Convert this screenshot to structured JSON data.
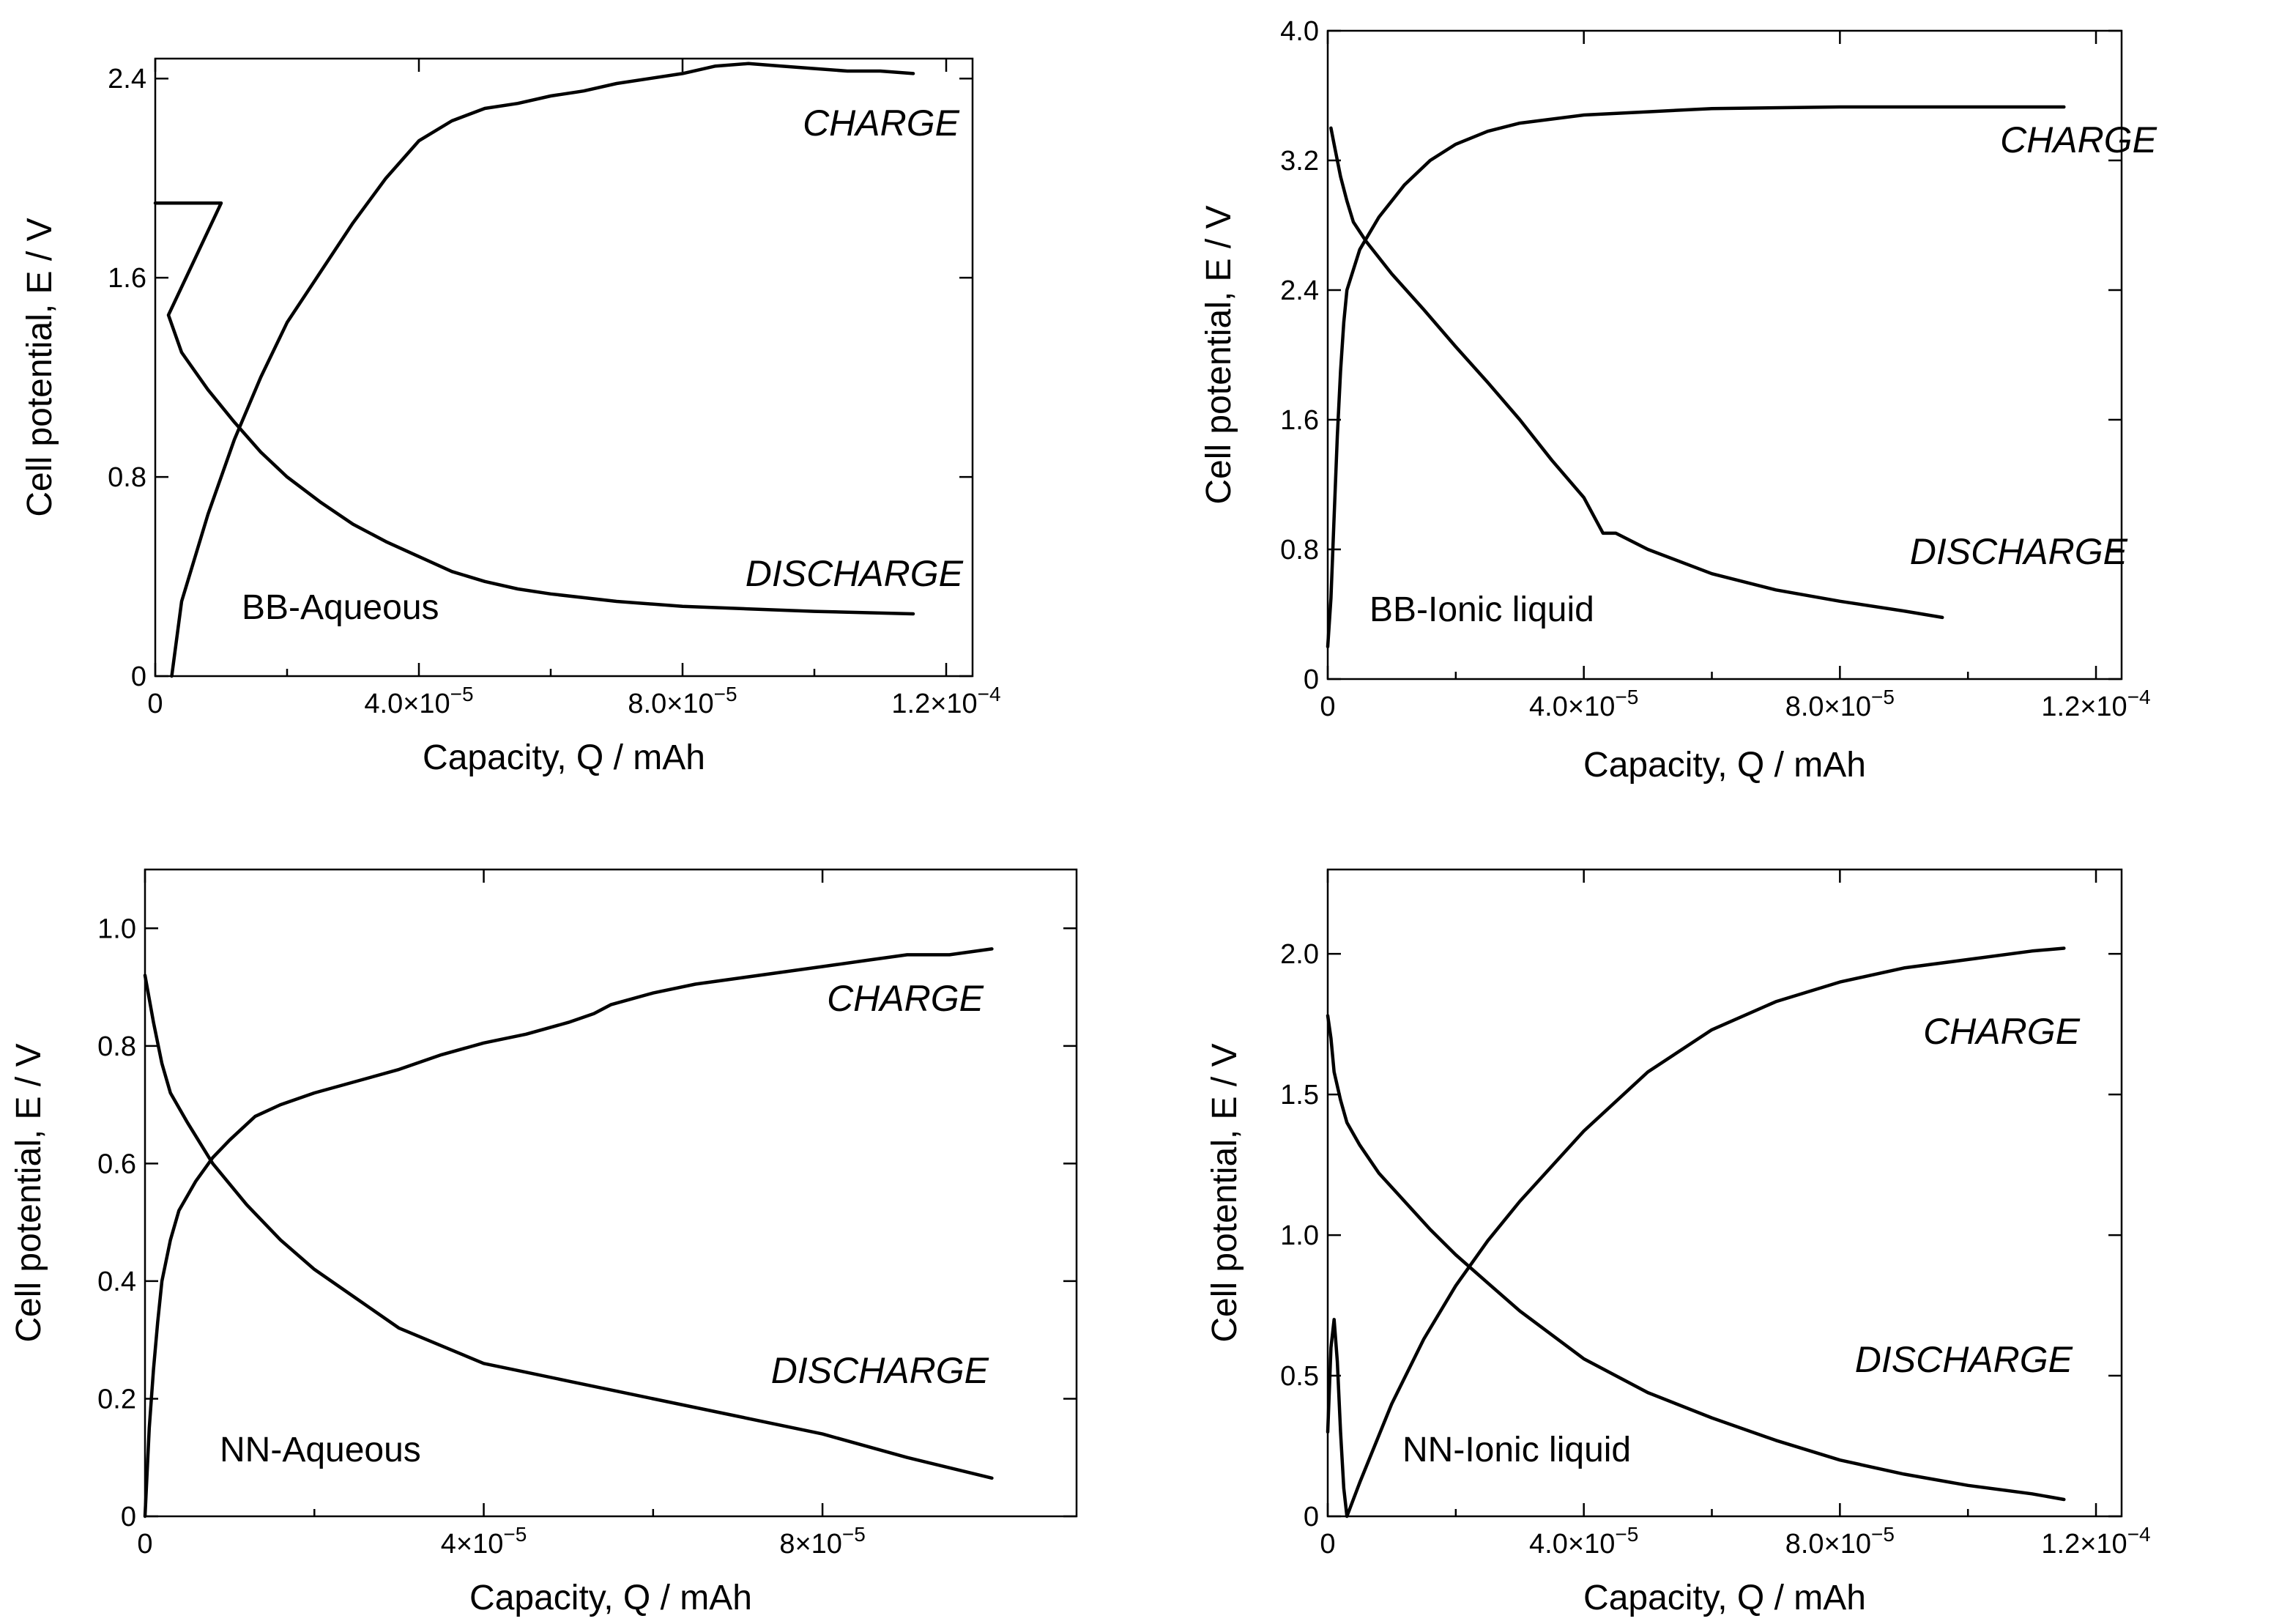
{
  "chart_data": [
    {
      "type": "line",
      "panel_label": "BB-Aqueous",
      "xlabel": "Capacity, Q / mAh",
      "ylabel": "Cell potential, E / V",
      "xlim": [
        0,
        0.000124
      ],
      "ylim": [
        0,
        2.48
      ],
      "x_ticks": [
        {
          "value": 0,
          "label": "0"
        },
        {
          "value": 4e-05,
          "label": "4.0×10",
          "exp": "−5"
        },
        {
          "value": 8e-05,
          "label": "8.0×10",
          "exp": "−5"
        },
        {
          "value": 0.00012,
          "label": "1.2×10",
          "exp": "−4"
        }
      ],
      "y_ticks": [
        {
          "value": 0,
          "label": "0"
        },
        {
          "value": 0.8,
          "label": "0.8"
        },
        {
          "value": 1.6,
          "label": "1.6"
        },
        {
          "value": 2.4,
          "label": "2.4"
        }
      ],
      "series": [
        {
          "name": "CHARGE",
          "x": [
            2.5e-06,
            4e-06,
            8e-06,
            1.2e-05,
            1.6e-05,
            2e-05,
            2.5e-05,
            3e-05,
            3.5e-05,
            4e-05,
            4.5e-05,
            5e-05,
            5.5e-05,
            6e-05,
            6.5e-05,
            7e-05,
            7.5e-05,
            8e-05,
            8.5e-05,
            9e-05,
            9.5e-05,
            0.0001,
            0.000105,
            0.00011,
            0.000115
          ],
          "y": [
            0,
            0.3,
            0.65,
            0.95,
            1.2,
            1.42,
            1.62,
            1.82,
            2.0,
            2.15,
            2.23,
            2.28,
            2.3,
            2.33,
            2.35,
            2.38,
            2.4,
            2.42,
            2.45,
            2.46,
            2.45,
            2.44,
            2.43,
            2.43,
            2.42
          ]
        },
        {
          "name": "DISCHARGE",
          "x": [
            0,
            1e-05,
            2e-06,
            4e-06,
            8e-06,
            1.2e-05,
            1.6e-05,
            2e-05,
            2.5e-05,
            3e-05,
            3.5e-05,
            4e-05,
            4.5e-05,
            5e-05,
            5.5e-05,
            6e-05,
            7e-05,
            8e-05,
            9e-05,
            0.0001,
            0.000115
          ],
          "y": [
            1.9,
            1.9,
            1.45,
            1.3,
            1.15,
            1.02,
            0.9,
            0.8,
            0.7,
            0.61,
            0.54,
            0.48,
            0.42,
            0.38,
            0.35,
            0.33,
            0.3,
            0.28,
            0.27,
            0.26,
            0.25
          ]
        }
      ]
    },
    {
      "type": "line",
      "panel_label": "BB-Ionic liquid",
      "xlabel": "Capacity, Q / mAh",
      "ylabel": "Cell potential, E / V",
      "xlim": [
        0,
        0.000124
      ],
      "ylim": [
        0,
        4.0
      ],
      "x_ticks": [
        {
          "value": 0,
          "label": "0"
        },
        {
          "value": 4e-05,
          "label": "4.0×10",
          "exp": "−5"
        },
        {
          "value": 8e-05,
          "label": "8.0×10",
          "exp": "−5"
        },
        {
          "value": 0.00012,
          "label": "1.2×10",
          "exp": "−4"
        }
      ],
      "y_ticks": [
        {
          "value": 0,
          "label": "0"
        },
        {
          "value": 0.8,
          "label": "0.8"
        },
        {
          "value": 1.6,
          "label": "1.6"
        },
        {
          "value": 2.4,
          "label": "2.4"
        },
        {
          "value": 3.2,
          "label": "3.2"
        },
        {
          "value": 4.0,
          "label": "4.0"
        }
      ],
      "series": [
        {
          "name": "CHARGE",
          "x": [
            0,
            5e-07,
            1e-06,
            1.5e-06,
            2e-06,
            2.5e-06,
            3e-06,
            5e-06,
            8e-06,
            1.2e-05,
            1.6e-05,
            2e-05,
            2.5e-05,
            3e-05,
            4e-05,
            5e-05,
            6e-05,
            8e-05,
            0.0001,
            0.000115
          ],
          "y": [
            0.2,
            0.5,
            1.0,
            1.5,
            1.9,
            2.2,
            2.4,
            2.65,
            2.85,
            3.05,
            3.2,
            3.3,
            3.38,
            3.43,
            3.48,
            3.5,
            3.52,
            3.53,
            3.53,
            3.53
          ]
        },
        {
          "name": "DISCHARGE",
          "x": [
            5e-07,
            1e-06,
            2e-06,
            3e-06,
            4e-06,
            6e-06,
            1e-05,
            1.5e-05,
            2e-05,
            2.5e-05,
            3e-05,
            3.5e-05,
            4e-05,
            4.3e-05,
            4.5e-05,
            5e-05,
            6e-05,
            7e-05,
            8e-05,
            9e-05,
            9.6e-05
          ],
          "y": [
            3.4,
            3.3,
            3.1,
            2.95,
            2.82,
            2.7,
            2.5,
            2.28,
            2.05,
            1.83,
            1.6,
            1.35,
            1.12,
            0.9,
            0.9,
            0.8,
            0.65,
            0.55,
            0.48,
            0.42,
            0.38
          ]
        }
      ]
    },
    {
      "type": "line",
      "panel_label": "NN-Aqueous",
      "xlabel": "Capacity, Q / mAh",
      "ylabel": "Cell potential, E / V",
      "xlim": [
        0,
        0.00011
      ],
      "ylim": [
        0,
        1.1
      ],
      "x_ticks": [
        {
          "value": 0,
          "label": "0"
        },
        {
          "value": 4e-05,
          "label": "4×10",
          "exp": "−5"
        },
        {
          "value": 8e-05,
          "label": "8×10",
          "exp": "−5"
        }
      ],
      "y_ticks": [
        {
          "value": 0,
          "label": "0"
        },
        {
          "value": 0.2,
          "label": "0.2"
        },
        {
          "value": 0.4,
          "label": "0.4"
        },
        {
          "value": 0.6,
          "label": "0.6"
        },
        {
          "value": 0.8,
          "label": "0.8"
        },
        {
          "value": 1.0,
          "label": "1.0"
        }
      ],
      "series": [
        {
          "name": "CHARGE",
          "x": [
            0,
            5e-07,
            1e-06,
            1.5e-06,
            2e-06,
            3e-06,
            4e-06,
            6e-06,
            8e-06,
            1e-05,
            1.3e-05,
            1.6e-05,
            2e-05,
            2.5e-05,
            3e-05,
            3.5e-05,
            4e-05,
            4.5e-05,
            5e-05,
            5.3e-05,
            5.5e-05,
            6e-05,
            6.5e-05,
            7e-05,
            7.5e-05,
            8e-05,
            8.5e-05,
            9e-05,
            9.5e-05,
            0.0001
          ],
          "y": [
            0.0,
            0.15,
            0.25,
            0.33,
            0.4,
            0.47,
            0.52,
            0.57,
            0.61,
            0.64,
            0.68,
            0.7,
            0.72,
            0.74,
            0.76,
            0.785,
            0.805,
            0.82,
            0.84,
            0.855,
            0.87,
            0.89,
            0.905,
            0.915,
            0.925,
            0.935,
            0.945,
            0.955,
            0.955,
            0.965
          ]
        },
        {
          "name": "DISCHARGE",
          "x": [
            0,
            1e-06,
            2e-06,
            3e-06,
            5e-06,
            8e-06,
            1.2e-05,
            1.6e-05,
            2e-05,
            2.5e-05,
            3e-05,
            3.5e-05,
            4e-05,
            4.5e-05,
            5e-05,
            5.5e-05,
            6e-05,
            7e-05,
            8e-05,
            9e-05,
            0.0001
          ],
          "y": [
            0.92,
            0.84,
            0.77,
            0.72,
            0.67,
            0.6,
            0.53,
            0.47,
            0.42,
            0.37,
            0.32,
            0.29,
            0.26,
            0.245,
            0.23,
            0.215,
            0.2,
            0.17,
            0.14,
            0.1,
            0.065
          ]
        }
      ]
    },
    {
      "type": "line",
      "panel_label": "NN-Ionic liquid",
      "xlabel": "Capacity, Q / mAh",
      "ylabel": "Cell potential, E / V",
      "xlim": [
        0,
        0.000124
      ],
      "ylim": [
        0,
        2.3
      ],
      "x_ticks": [
        {
          "value": 0,
          "label": "0"
        },
        {
          "value": 4e-05,
          "label": "4.0×10",
          "exp": "−5"
        },
        {
          "value": 8e-05,
          "label": "8.0×10",
          "exp": "−5"
        },
        {
          "value": 0.00012,
          "label": "1.2×10",
          "exp": "−4"
        }
      ],
      "y_ticks": [
        {
          "value": 0,
          "label": "0"
        },
        {
          "value": 0.5,
          "label": "0.5"
        },
        {
          "value": 1.0,
          "label": "1.0"
        },
        {
          "value": 1.5,
          "label": "1.5"
        },
        {
          "value": 2.0,
          "label": "2.0"
        }
      ],
      "series": [
        {
          "name": "CHARGE",
          "x": [
            0,
            5e-07,
            1e-06,
            1.5e-06,
            2e-06,
            2.5e-06,
            3e-06,
            5e-06,
            1e-05,
            1.5e-05,
            2e-05,
            2.5e-05,
            3e-05,
            4e-05,
            5e-05,
            6e-05,
            7e-05,
            8e-05,
            9e-05,
            0.0001,
            0.00011,
            0.000115
          ],
          "y": [
            0.3,
            0.6,
            0.7,
            0.55,
            0.3,
            0.1,
            0.0,
            0.12,
            0.4,
            0.63,
            0.82,
            0.98,
            1.12,
            1.37,
            1.58,
            1.73,
            1.83,
            1.9,
            1.95,
            1.98,
            2.01,
            2.02
          ]
        },
        {
          "name": "DISCHARGE",
          "x": [
            0,
            5e-07,
            1e-06,
            2e-06,
            3e-06,
            5e-06,
            8e-06,
            1.2e-05,
            1.6e-05,
            2e-05,
            2.5e-05,
            3e-05,
            4e-05,
            5e-05,
            6e-05,
            7e-05,
            8e-05,
            9e-05,
            0.0001,
            0.00011,
            0.000115
          ],
          "y": [
            1.78,
            1.7,
            1.58,
            1.48,
            1.4,
            1.32,
            1.22,
            1.12,
            1.02,
            0.93,
            0.83,
            0.73,
            0.56,
            0.44,
            0.35,
            0.27,
            0.2,
            0.15,
            0.11,
            0.08,
            0.06
          ]
        }
      ]
    }
  ]
}
